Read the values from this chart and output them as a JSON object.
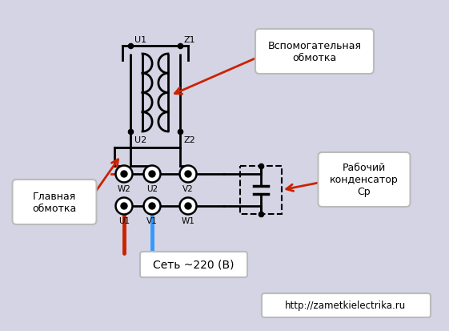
{
  "bg_color": "#d4d4e4",
  "fg_color": "#000000",
  "website": "http://zametkielectrika.ru",
  "network_label": "Сеть ~220 (В)",
  "label_glavnaya": "Главная\nобмотка",
  "label_vspom": "Вспомогательная\nобмотка",
  "label_kondensator": "Рабочий\nконденсатор\nСр",
  "red_wire_color": "#cc2200",
  "blue_wire_color": "#3399ff",
  "arrow_color": "#cc2200",
  "box_bg": "#ffffff",
  "box_edge": "#bbbbbb"
}
